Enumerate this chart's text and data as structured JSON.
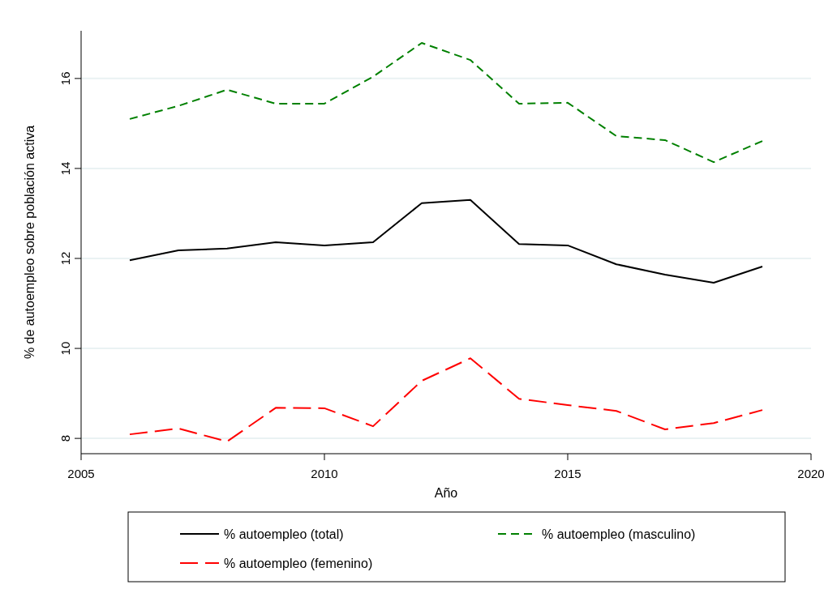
{
  "chart_data": {
    "type": "line",
    "xlabel": "Año",
    "ylabel": "% de autoempleo sobre población activa",
    "x": [
      2006,
      2007,
      2008,
      2009,
      2010,
      2011,
      2012,
      2013,
      2014,
      2015,
      2016,
      2017,
      2018,
      2019
    ],
    "series": [
      {
        "name": "% autoempleo (total)",
        "color": "#000000",
        "line_style": "solid",
        "values": [
          11.96,
          12.18,
          12.22,
          12.36,
          12.29,
          12.36,
          13.23,
          13.3,
          12.32,
          12.29,
          11.87,
          11.64,
          11.46,
          11.82
        ]
      },
      {
        "name": "% autoempleo (masculino)",
        "color": "#008000",
        "line_style": "dashed",
        "values": [
          15.1,
          15.39,
          15.75,
          15.44,
          15.44,
          16.04,
          16.79,
          16.41,
          15.44,
          15.46,
          14.72,
          14.63,
          14.14,
          14.61
        ]
      },
      {
        "name": "% autoempleo (femenino)",
        "color": "#ff0000",
        "line_style": "longdash",
        "values": [
          8.09,
          8.22,
          7.93,
          8.68,
          8.67,
          8.27,
          9.28,
          9.78,
          8.88,
          8.74,
          8.61,
          8.2,
          8.34,
          8.63
        ]
      }
    ],
    "xlim": [
      2005,
      2020
    ],
    "xticks": [
      2005,
      2010,
      2015,
      2020
    ],
    "ylim": [
      7.66,
      17.06
    ],
    "yticks": [
      8,
      10,
      12,
      14,
      16
    ],
    "grid": "y",
    "legend": "bottom"
  }
}
